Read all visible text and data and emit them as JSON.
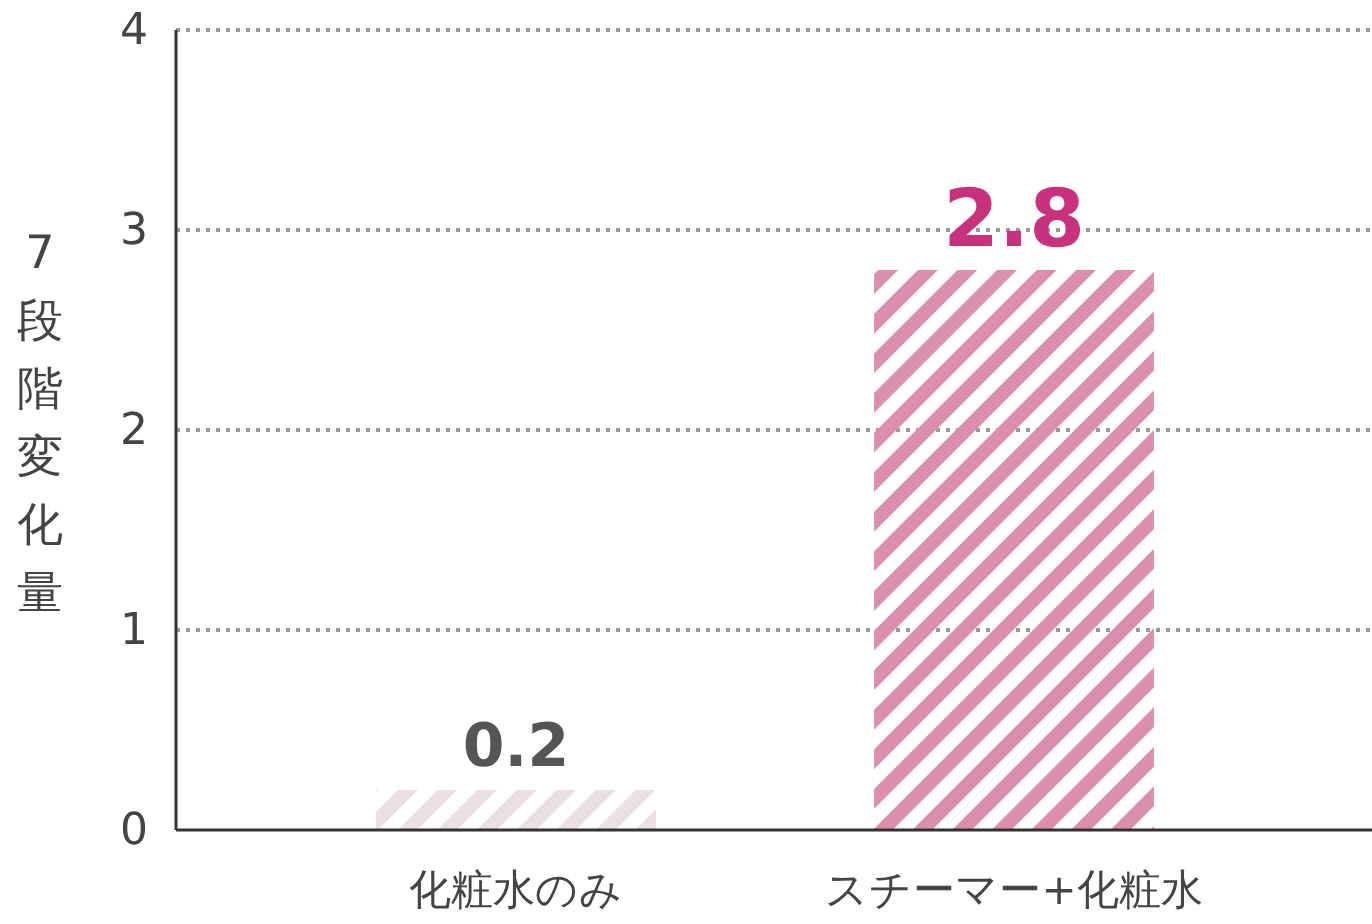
{
  "chart_data": {
    "type": "bar",
    "ylabel": "7段階変化量",
    "categories": [
      "化粧水のみ",
      "スチーマー+化粧水"
    ],
    "values": [
      0.2,
      2.8
    ],
    "colors": [
      "#eadfe4",
      "#dc8fad"
    ],
    "ylim": [
      0,
      4
    ],
    "yticks": [
      0,
      1,
      2,
      3,
      4
    ],
    "grid": "y",
    "data_labels": true
  }
}
